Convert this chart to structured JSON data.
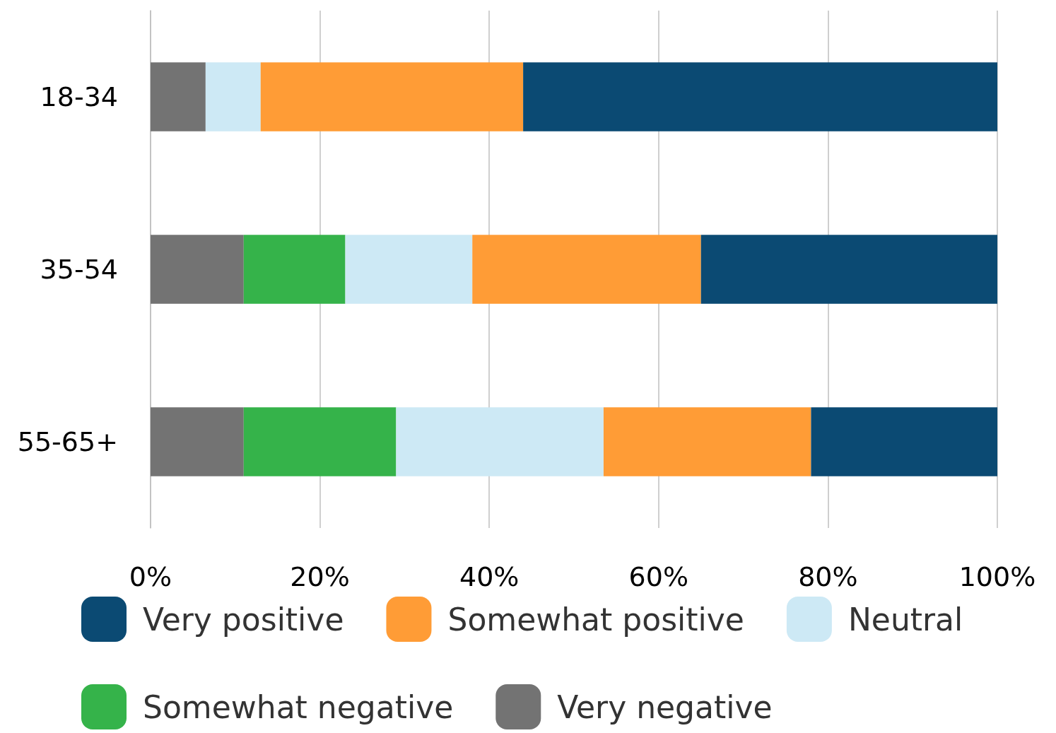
{
  "chart_data": {
    "type": "bar",
    "orientation": "horizontal",
    "stacked": true,
    "categories": [
      "18-34",
      "35-54",
      "55-65+"
    ],
    "series": [
      {
        "name": "Very negative",
        "color": "#737373",
        "values": [
          6.5,
          11,
          11
        ]
      },
      {
        "name": "Somewhat negative",
        "color": "#35b34a",
        "values": [
          0,
          12,
          18
        ]
      },
      {
        "name": "Neutral",
        "color": "#cde9f5",
        "values": [
          6.5,
          15,
          24.5
        ]
      },
      {
        "name": "Somewhat positive",
        "color": "#ff9c36",
        "values": [
          31,
          27,
          24.5
        ]
      },
      {
        "name": "Very positive",
        "color": "#0b4a73",
        "values": [
          56,
          35,
          22
        ]
      }
    ],
    "xlim": [
      0,
      100
    ],
    "xticks": [
      {
        "value": 0,
        "label": "0%"
      },
      {
        "value": 20,
        "label": "20%"
      },
      {
        "value": 40,
        "label": "40%"
      },
      {
        "value": 60,
        "label": "60%"
      },
      {
        "value": 80,
        "label": "80%"
      },
      {
        "value": 100,
        "label": "100%"
      }
    ],
    "grid": "x",
    "legend": "bottom"
  }
}
